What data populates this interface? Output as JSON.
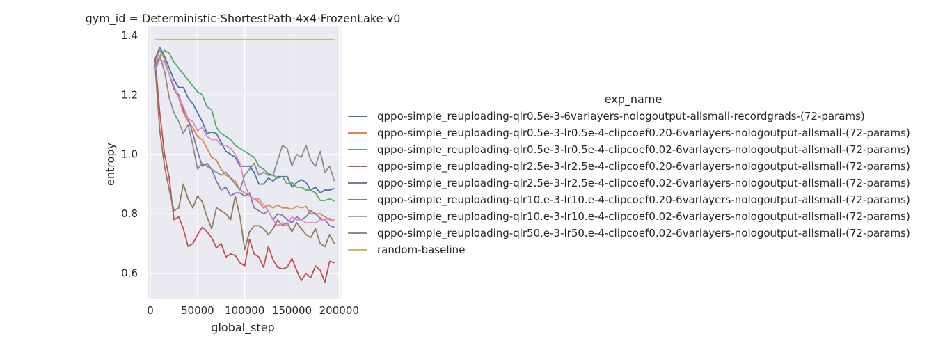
{
  "chart_data": {
    "type": "line",
    "title": "gym_id = Deterministic-ShortestPath-4x4-FrozenLake-v0",
    "xlabel": "global_step",
    "ylabel": "entropy",
    "xlim": [
      -3000,
      202000
    ],
    "ylim": [
      0.515,
      1.43
    ],
    "xticks": [
      0,
      50000,
      100000,
      150000,
      200000
    ],
    "xtick_labels": [
      "0",
      "50000",
      "100000",
      "150000",
      "200000"
    ],
    "yticks": [
      0.6,
      0.8,
      1.0,
      1.2,
      1.4
    ],
    "ytick_labels": [
      "0.6",
      "0.8",
      "1.0",
      "1.2",
      "1.4"
    ],
    "grid": true,
    "legend_title": "exp_name",
    "legend_placement": "right",
    "x": [
      5000,
      10000,
      15000,
      20000,
      25000,
      30000,
      35000,
      40000,
      45000,
      50000,
      55000,
      60000,
      65000,
      70000,
      75000,
      80000,
      85000,
      90000,
      95000,
      100000,
      105000,
      110000,
      115000,
      120000,
      125000,
      130000,
      135000,
      140000,
      145000,
      150000,
      155000,
      160000,
      165000,
      170000,
      175000,
      180000,
      185000,
      190000,
      195000
    ],
    "series": [
      {
        "name": "qppo-simple_reuploading-qlr0.5e-3-6varlayers-nologoutput-allsmall-recordgrads-(72-params)",
        "color": "#4c72b0",
        "values": [
          1.32,
          1.36,
          1.33,
          1.29,
          1.25,
          1.225,
          1.225,
          1.19,
          1.17,
          1.14,
          1.11,
          1.07,
          1.075,
          1.07,
          1.04,
          1.01,
          1.0,
          0.99,
          0.96,
          0.96,
          0.96,
          0.94,
          0.9,
          0.9,
          0.92,
          0.91,
          0.925,
          0.925,
          0.925,
          0.89,
          0.905,
          0.915,
          0.905,
          0.88,
          0.89,
          0.87,
          0.88,
          0.88,
          0.885
        ]
      },
      {
        "name": "qppo-simple_reuploading-qlr0.5e-3-lr0.5e-4-clipcoef0.20-6varlayers-nologoutput-allsmall-(72-params)",
        "color": "#dd8452",
        "values": [
          1.31,
          1.35,
          1.32,
          1.27,
          1.22,
          1.19,
          1.14,
          1.11,
          1.09,
          1.06,
          1.05,
          1.02,
          0.99,
          0.98,
          0.95,
          0.93,
          0.92,
          0.91,
          0.88,
          0.87,
          0.86,
          0.85,
          0.84,
          0.82,
          0.83,
          0.82,
          0.83,
          0.82,
          0.82,
          0.815,
          0.825,
          0.82,
          0.825,
          0.8,
          0.8,
          0.8,
          0.79,
          0.78,
          0.78
        ]
      },
      {
        "name": "qppo-simple_reuploading-qlr0.5e-3-lr0.5e-4-clipcoef0.02-6varlayers-nologoutput-allsmall-(72-params)",
        "color": "#55a868",
        "values": [
          1.3,
          1.33,
          1.35,
          1.34,
          1.31,
          1.29,
          1.27,
          1.25,
          1.23,
          1.21,
          1.2,
          1.16,
          1.15,
          1.09,
          1.07,
          1.06,
          1.05,
          1.03,
          1.02,
          1.01,
          1.0,
          0.99,
          0.96,
          0.95,
          0.935,
          0.93,
          0.92,
          0.925,
          0.9,
          0.905,
          0.89,
          0.89,
          0.88,
          0.88,
          0.87,
          0.845,
          0.845,
          0.85,
          0.843
        ]
      },
      {
        "name": "qppo-simple_reuploading-qlr2.5e-3-lr2.5e-4-clipcoef0.20-6varlayers-nologoutput-allsmall-(72-params)",
        "color": "#c44e52",
        "values": [
          1.32,
          1.14,
          1.0,
          0.92,
          0.78,
          0.79,
          0.75,
          0.69,
          0.7,
          0.73,
          0.755,
          0.74,
          0.72,
          0.685,
          0.7,
          0.655,
          0.665,
          0.66,
          0.635,
          0.625,
          0.715,
          0.665,
          0.655,
          0.62,
          0.69,
          0.645,
          0.62,
          0.615,
          0.62,
          0.65,
          0.61,
          0.575,
          0.6,
          0.585,
          0.625,
          0.61,
          0.57,
          0.64,
          0.635
        ]
      },
      {
        "name": "qppo-simple_reuploading-qlr2.5e-3-lr2.5e-4-clipcoef0.02-6varlayers-nologoutput-allsmall-(72-params)",
        "color": "#8172b3",
        "values": [
          1.3,
          1.32,
          1.31,
          1.27,
          1.22,
          1.2,
          1.15,
          1.12,
          1.07,
          1.01,
          0.96,
          0.97,
          0.95,
          0.91,
          0.88,
          0.89,
          0.86,
          0.87,
          0.87,
          0.86,
          0.87,
          0.82,
          0.81,
          0.8,
          0.81,
          0.78,
          0.8,
          0.795,
          0.78,
          0.77,
          0.79,
          0.78,
          0.79,
          0.81,
          0.8,
          0.785,
          0.78,
          0.76,
          0.755
        ]
      },
      {
        "name": "qppo-simple_reuploading-qlr10.e-3-lr10.e-4-clipcoef0.20-6varlayers-nologoutput-allsmall-(72-params)",
        "color": "#937860",
        "values": [
          1.3,
          1.08,
          0.96,
          0.88,
          0.81,
          0.82,
          0.9,
          0.85,
          0.82,
          0.86,
          0.84,
          0.79,
          0.75,
          0.82,
          0.81,
          0.8,
          0.78,
          0.86,
          0.79,
          0.68,
          0.74,
          0.76,
          0.76,
          0.75,
          0.73,
          0.75,
          0.78,
          0.76,
          0.77,
          0.74,
          0.77,
          0.75,
          0.73,
          0.72,
          0.75,
          0.7,
          0.69,
          0.73,
          0.7
        ]
      },
      {
        "name": "qppo-simple_reuploading-qlr10.e-3-lr10.e-4-clipcoef0.02-6varlayers-nologoutput-allsmall-(72-params)",
        "color": "#da8bc3",
        "values": [
          1.28,
          1.32,
          1.31,
          1.27,
          1.23,
          1.19,
          1.16,
          1.12,
          1.11,
          1.08,
          1.09,
          1.06,
          1.05,
          1.05,
          1.03,
          1.03,
          1.02,
          1.0,
          0.97,
          0.9,
          0.86,
          0.85,
          0.85,
          0.83,
          0.81,
          0.78,
          0.76,
          0.77,
          0.76,
          0.79,
          0.78,
          0.78,
          0.77,
          0.77,
          0.77,
          0.78,
          0.78,
          0.785,
          0.775
        ]
      },
      {
        "name": "qppo-simple_reuploading-qlr50.e-3-lr50.e-4-clipcoef0.02-6varlayers-nologoutput-allsmall-(72-params)",
        "color": "#8c8c8c",
        "values": [
          1.29,
          1.33,
          1.28,
          1.19,
          1.14,
          1.11,
          1.07,
          1.1,
          1.03,
          0.95,
          0.97,
          0.96,
          0.95,
          0.94,
          0.93,
          0.94,
          0.92,
          0.9,
          0.88,
          0.93,
          0.95,
          0.97,
          0.93,
          0.94,
          0.93,
          0.93,
          0.98,
          1.03,
          1.02,
          0.96,
          1.0,
          0.99,
          1.03,
          0.98,
          0.96,
          1.01,
          0.94,
          0.96,
          0.91
        ]
      },
      {
        "name": "random-baseline",
        "color": "#ccb974",
        "values": [
          1.386,
          1.386,
          1.386,
          1.386,
          1.386,
          1.386,
          1.386,
          1.386,
          1.386,
          1.386,
          1.386,
          1.386,
          1.386,
          1.386,
          1.386,
          1.386,
          1.386,
          1.386,
          1.386,
          1.386,
          1.386,
          1.386,
          1.386,
          1.386,
          1.386,
          1.386,
          1.386,
          1.386,
          1.386,
          1.386,
          1.386,
          1.386,
          1.386,
          1.386,
          1.386,
          1.386,
          1.386,
          1.386,
          1.386
        ]
      }
    ]
  }
}
